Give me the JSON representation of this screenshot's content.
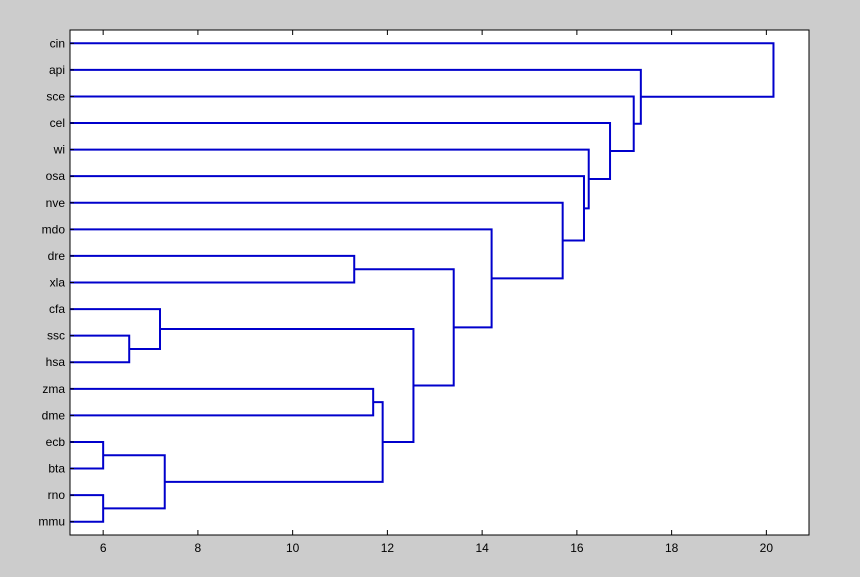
{
  "chart_data": {
    "type": "dendrogram",
    "orientation": "horizontal",
    "title": "",
    "xlabel": "",
    "ylabel": "",
    "xlim": [
      5.3,
      20.9
    ],
    "xticks": [
      6,
      8,
      10,
      12,
      14,
      16,
      18,
      20
    ],
    "leaves": [
      "cin",
      "api",
      "sce",
      "cel",
      "wi",
      "osa",
      "nve",
      "mdo",
      "dre",
      "xla",
      "cfa",
      "ssc",
      "hsa",
      "zma",
      "dme",
      "ecb",
      "bta",
      "rno",
      "mmu"
    ],
    "merges": [
      {
        "left": "ecb",
        "right": "bta",
        "height": 6.0
      },
      {
        "left": "rno",
        "right": "mmu",
        "height": 6.0
      },
      {
        "left": "ssc",
        "right": "hsa",
        "height": 6.55
      },
      {
        "left": "cfa",
        "right": "(ssc,hsa)",
        "height": 7.2
      },
      {
        "left": "(ecb,bta)",
        "right": "(rno,mmu)",
        "height": 7.3
      },
      {
        "left": "dre",
        "right": "xla",
        "height": 11.3
      },
      {
        "left": "zma",
        "right": "dme",
        "height": 11.7
      },
      {
        "left": "(zma,dme)",
        "right": "(ecb,bta,rno,mmu)",
        "height": 11.9
      },
      {
        "left": "(cfa,ssc,hsa)",
        "right": "(zma,dme,ecb,bta,rno,mmu)",
        "height": 12.55
      },
      {
        "left": "(dre,xla)",
        "right": "(cfa..mmu)",
        "height": 13.4
      },
      {
        "left": "mdo",
        "right": "(dre..mmu)",
        "height": 14.2
      },
      {
        "left": "nve",
        "right": "(mdo..mmu)",
        "height": 15.7
      },
      {
        "left": "osa",
        "right": "(nve..mmu)",
        "height": 16.15
      },
      {
        "left": "wi",
        "right": "(osa..mmu)",
        "height": 16.25
      },
      {
        "left": "cel",
        "right": "(wi..mmu)",
        "height": 16.7
      },
      {
        "left": "sce",
        "right": "(cel..mmu)",
        "height": 17.2
      },
      {
        "left": "api",
        "right": "(sce..mmu)",
        "height": 17.35
      },
      {
        "left": "cin",
        "right": "(api..mmu)",
        "height": 20.15
      }
    ],
    "grid": false,
    "colors": {
      "line": "#0000cc",
      "background": "#cccccc",
      "axes": "#ffffff",
      "axis_line": "#000000"
    }
  }
}
